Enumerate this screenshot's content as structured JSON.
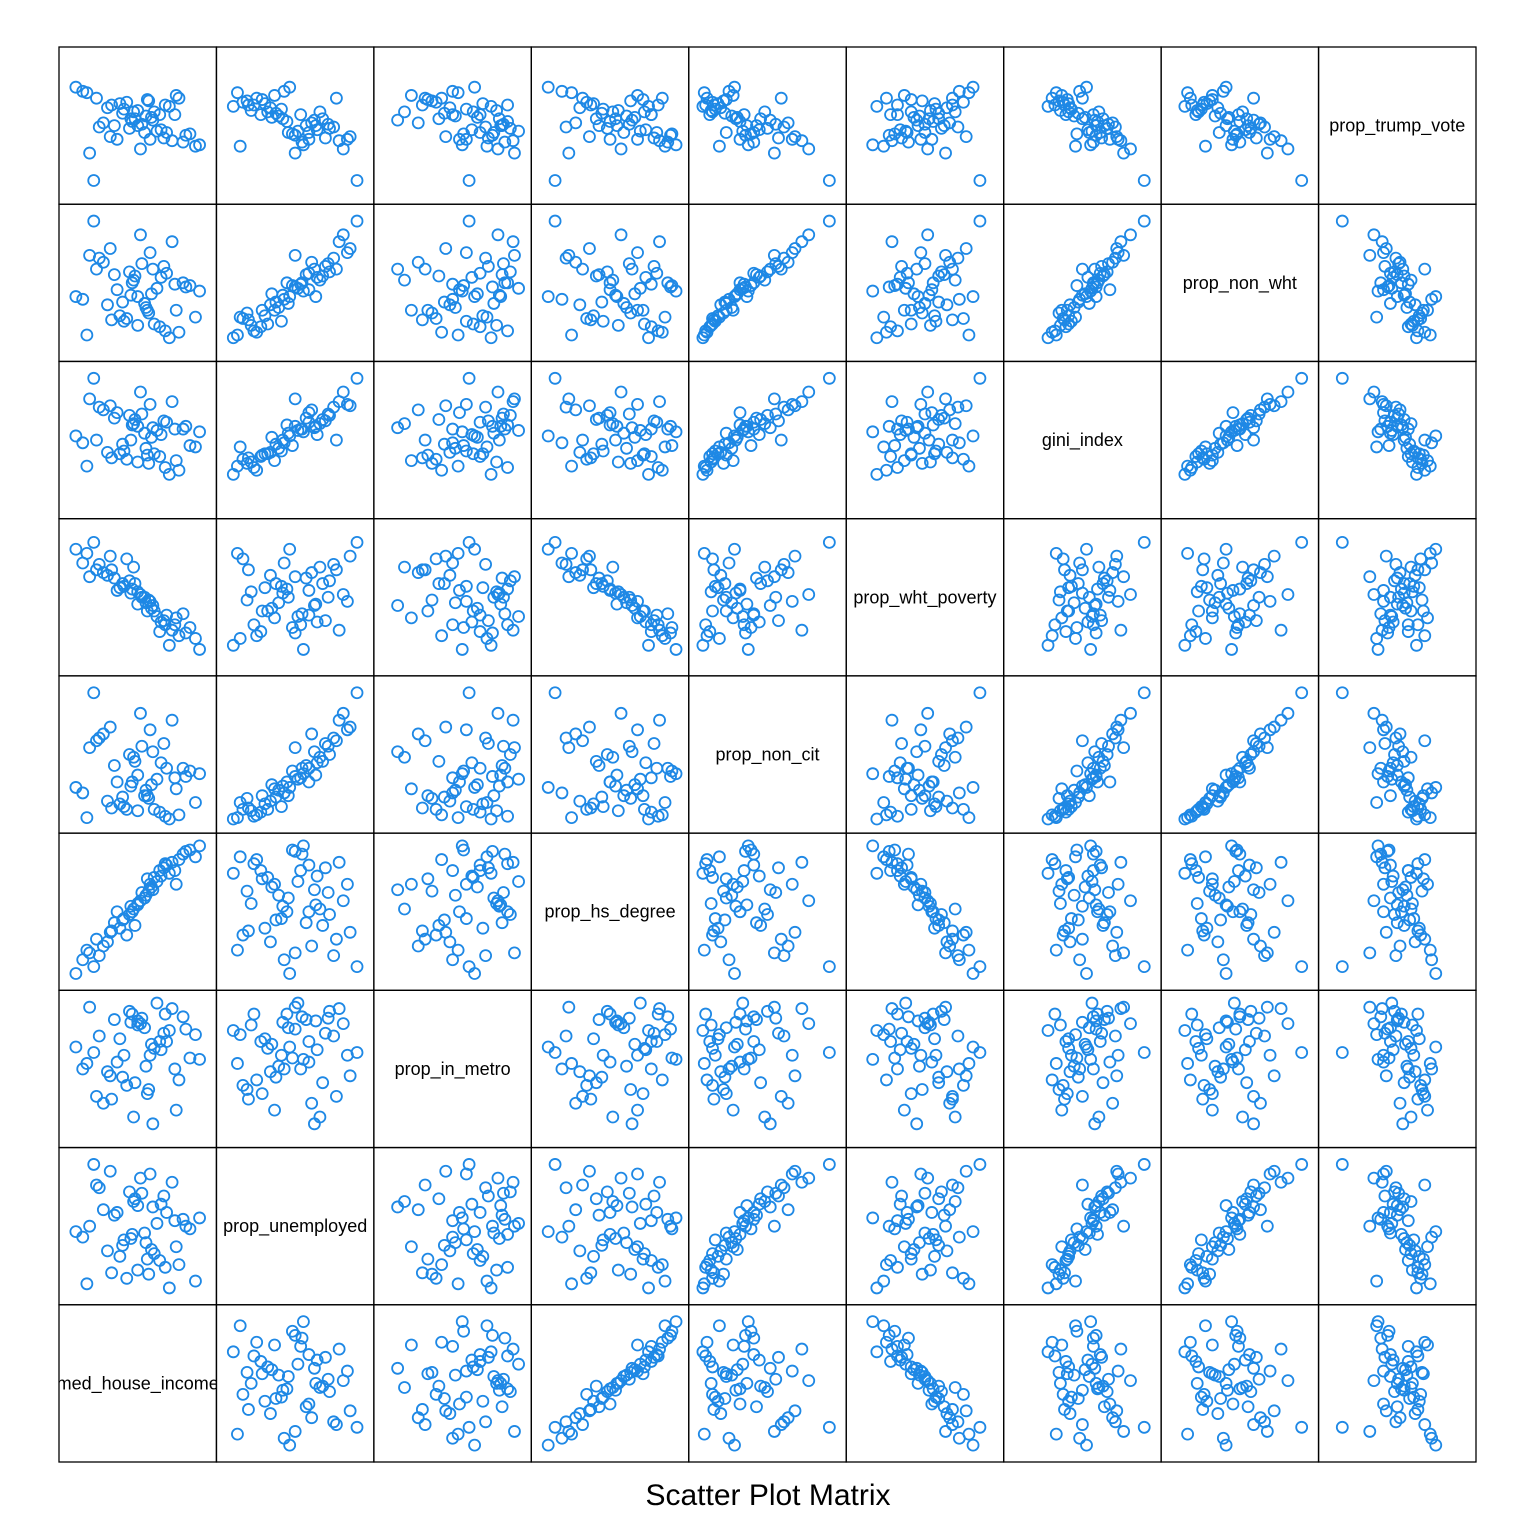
{
  "chart_data": {
    "type": "scatter",
    "title": "Scatter Plot Matrix",
    "variables": [
      "med_house_income",
      "prop_unemployed",
      "prop_in_metro",
      "prop_hs_degree",
      "prop_non_cit",
      "prop_wht_poverty",
      "gini_index",
      "prop_non_wht",
      "prop_trump_vote"
    ],
    "grid": false,
    "point_color": "#1E88E5",
    "point_marker": "open-circle",
    "n_observations": 50,
    "data": {
      "med_house_income": [
        0.55,
        0.62,
        0.48,
        0.7,
        0.35,
        0.2,
        0.92,
        0.15,
        0.78,
        0.5,
        0.4,
        0.66,
        0.3,
        0.83,
        0.58,
        0.44,
        0.1,
        0.73,
        0.25,
        0.6,
        0.52,
        0.88,
        0.37,
        0.47,
        0.64,
        0.18,
        0.8,
        0.33,
        0.56,
        0.69,
        0.42,
        0.05,
        0.75,
        0.28,
        0.61,
        0.5,
        0.95,
        0.22,
        0.57,
        0.46,
        0.67,
        0.13,
        0.85,
        0.39,
        0.53,
        0.71,
        0.31,
        0.59,
        0.45,
        0.77
      ],
      "prop_unemployed": [
        0.45,
        0.3,
        0.7,
        0.2,
        0.6,
        0.8,
        0.1,
        0.5,
        0.35,
        0.65,
        0.4,
        0.25,
        0.9,
        0.55,
        0.15,
        0.75,
        0.42,
        0.05,
        0.62,
        0.33,
        0.85,
        0.48,
        0.28,
        0.68,
        0.52,
        0.95,
        0.22,
        0.58,
        0.38,
        0.72,
        0.12,
        0.46,
        0.82,
        0.32,
        0.64,
        0.18,
        0.56,
        0.78,
        0.26,
        0.44,
        0.66,
        0.08,
        0.5,
        0.36,
        0.74,
        0.6,
        0.16,
        0.88,
        0.41,
        0.54
      ],
      "prop_in_metro": [
        0.8,
        0.65,
        0.4,
        0.9,
        0.55,
        0.3,
        0.75,
        0.95,
        0.2,
        0.85,
        0.6,
        0.7,
        0.45,
        0.88,
        0.35,
        0.92,
        0.5,
        0.78,
        0.25,
        0.68,
        0.83,
        0.58,
        0.72,
        0.15,
        0.98,
        0.62,
        0.42,
        0.86,
        0.52,
        0.76,
        0.38,
        0.66,
        0.94,
        0.48,
        0.1,
        0.82,
        0.57,
        0.74,
        0.32,
        0.9,
        0.64,
        0.54,
        0.79,
        0.44,
        0.87,
        0.7,
        0.28,
        0.6,
        0.84,
        0.5
      ],
      "prop_hs_degree": [
        0.6,
        0.75,
        0.4,
        0.85,
        0.5,
        0.3,
        0.9,
        0.2,
        0.7,
        0.55,
        0.45,
        0.8,
        0.35,
        0.92,
        0.65,
        0.48,
        0.15,
        0.78,
        0.25,
        0.68,
        0.58,
        0.95,
        0.38,
        0.52,
        0.72,
        0.1,
        0.88,
        0.42,
        0.62,
        0.82,
        0.33,
        0.05,
        0.86,
        0.28,
        0.66,
        0.56,
        0.98,
        0.18,
        0.74,
        0.5,
        0.76,
        0.22,
        0.94,
        0.44,
        0.64,
        0.84,
        0.36,
        0.7,
        0.54,
        0.8
      ],
      "prop_non_cit": [
        0.2,
        0.1,
        0.45,
        0.05,
        0.3,
        0.6,
        0.15,
        0.55,
        0.25,
        0.35,
        0.12,
        0.08,
        0.7,
        0.4,
        0.18,
        0.5,
        0.22,
        0.03,
        0.65,
        0.28,
        0.8,
        0.38,
        0.14,
        0.48,
        0.32,
        0.95,
        0.06,
        0.42,
        0.24,
        0.58,
        0.1,
        0.26,
        0.75,
        0.16,
        0.52,
        0.09,
        0.36,
        0.62,
        0.2,
        0.3,
        0.44,
        0.04,
        0.34,
        0.19,
        0.56,
        0.4,
        0.11,
        0.68,
        0.27,
        0.33
      ],
      "prop_wht_poverty": [
        0.5,
        0.4,
        0.6,
        0.3,
        0.55,
        0.7,
        0.2,
        0.65,
        0.35,
        0.45,
        0.58,
        0.25,
        0.8,
        0.38,
        0.48,
        0.62,
        0.75,
        0.15,
        0.68,
        0.42,
        0.52,
        0.28,
        0.57,
        0.72,
        0.36,
        0.9,
        0.22,
        0.64,
        0.46,
        0.33,
        0.78,
        0.85,
        0.26,
        0.66,
        0.44,
        0.54,
        0.12,
        0.74,
        0.4,
        0.56,
        0.32,
        0.82,
        0.24,
        0.6,
        0.5,
        0.37,
        0.7,
        0.47,
        0.53,
        0.3
      ],
      "gini_index": [
        0.55,
        0.4,
        0.65,
        0.3,
        0.7,
        0.5,
        0.45,
        0.8,
        0.35,
        0.6,
        0.42,
        0.38,
        0.75,
        0.58,
        0.33,
        0.68,
        0.48,
        0.25,
        0.72,
        0.52,
        0.85,
        0.46,
        0.4,
        0.62,
        0.57,
        0.95,
        0.28,
        0.66,
        0.44,
        0.64,
        0.36,
        0.53,
        0.78,
        0.41,
        0.59,
        0.34,
        0.56,
        0.74,
        0.39,
        0.61,
        0.54,
        0.31,
        0.6,
        0.47,
        0.69,
        0.63,
        0.37,
        0.76,
        0.5,
        0.58
      ],
      "prop_non_wht": [
        0.35,
        0.2,
        0.55,
        0.15,
        0.45,
        0.6,
        0.25,
        0.7,
        0.3,
        0.4,
        0.22,
        0.18,
        0.75,
        0.5,
        0.28,
        0.58,
        0.38,
        0.1,
        0.65,
        0.42,
        0.85,
        0.48,
        0.26,
        0.52,
        0.46,
        0.95,
        0.14,
        0.56,
        0.32,
        0.62,
        0.24,
        0.4,
        0.8,
        0.34,
        0.6,
        0.19,
        0.44,
        0.68,
        0.3,
        0.5,
        0.54,
        0.12,
        0.47,
        0.36,
        0.64,
        0.57,
        0.23,
        0.72,
        0.41,
        0.49
      ],
      "prop_trump_vote": [
        0.45,
        0.6,
        0.55,
        0.65,
        0.4,
        0.7,
        0.35,
        0.3,
        0.72,
        0.5,
        0.62,
        0.58,
        0.42,
        0.38,
        0.68,
        0.48,
        0.75,
        0.64,
        0.52,
        0.56,
        0.33,
        0.44,
        0.66,
        0.6,
        0.46,
        0.1,
        0.7,
        0.5,
        0.57,
        0.41,
        0.67,
        0.78,
        0.39,
        0.63,
        0.54,
        0.61,
        0.36,
        0.49,
        0.69,
        0.53,
        0.47,
        0.74,
        0.43,
        0.59,
        0.51,
        0.45,
        0.65,
        0.4,
        0.55,
        0.58
      ]
    }
  }
}
